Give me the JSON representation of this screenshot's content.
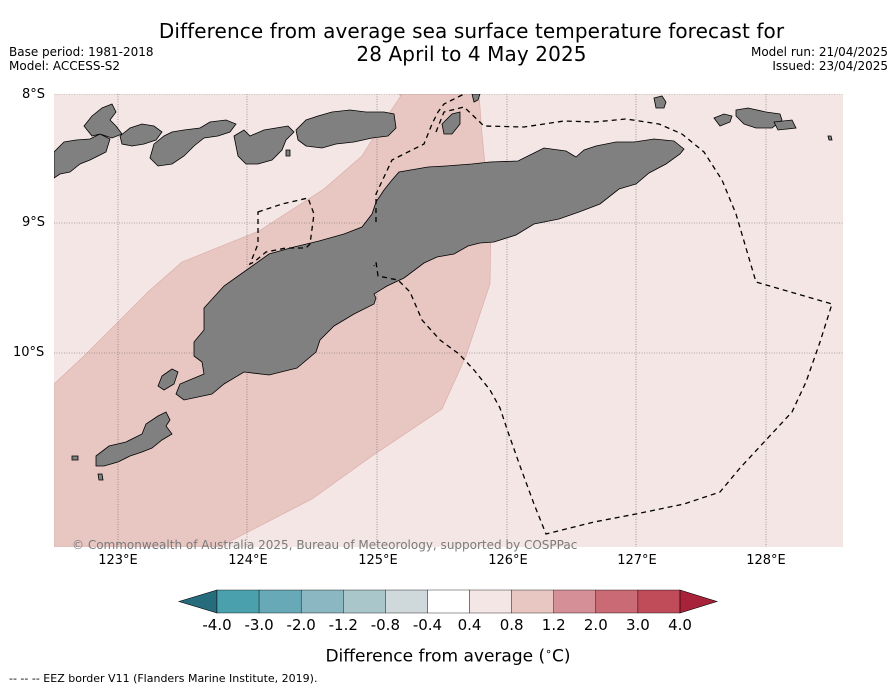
{
  "title": {
    "line1": "Difference from average sea surface temperature forecast for",
    "line2": "28 April to 4 May 2025"
  },
  "meta": {
    "base_period": "Base period: 1981-2018",
    "model": "Model: ACCESS-S2",
    "model_run": "Model run: 21/04/2025",
    "issued": "Issued: 23/04/2025"
  },
  "map": {
    "lat_labels": [
      "8°S",
      "9°S",
      "10°S"
    ],
    "lon_labels": [
      "123°E",
      "124°E",
      "125°E",
      "126°E",
      "127°E",
      "128°E"
    ],
    "copyright": "© Commonwealth of Australia 2025, Bureau of Meteorology, supported by COSPPac",
    "background_anomaly_color": "#f4e6e4",
    "warm_anomaly_color": "#e8c6c1",
    "land_color": "#808080",
    "eez_line_style": "dashed black"
  },
  "colorbar": {
    "tick_labels": [
      "-4.0",
      "-3.0",
      "-2.0",
      "-1.2",
      "-0.8",
      "-0.4",
      "0.4",
      "0.8",
      "1.2",
      "2.0",
      "3.0",
      "4.0"
    ],
    "colors": [
      "#276c7c",
      "#4aa0ad",
      "#67a9b6",
      "#8ab7c2",
      "#a9c7cb",
      "#cfd8da",
      "#ffffff",
      "#f4e6e4",
      "#e8c6c1",
      "#d58f96",
      "#c96a74",
      "#c04b59",
      "#a8223a"
    ],
    "label_prefix": "Difference from average (",
    "label_degree": "∘",
    "label_unit": "C)"
  },
  "legend_note": "-- -- -- EEZ border V11 (Flanders Marine Institute, 2019)."
}
